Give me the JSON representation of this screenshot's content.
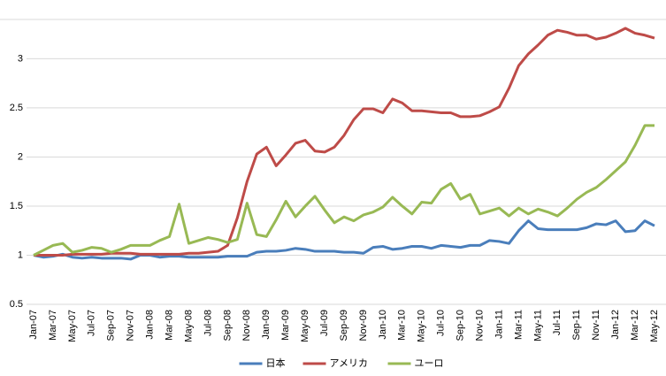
{
  "chart_data": {
    "type": "line",
    "categories": [
      "Jan-07",
      null,
      "Mar-07",
      null,
      "May-07",
      null,
      "Jul-07",
      null,
      "Sep-07",
      null,
      "Nov-07",
      null,
      "Jan-08",
      null,
      "Mar-08",
      null,
      "May-08",
      null,
      "Jul-08",
      null,
      "Sep-08",
      null,
      "Nov-08",
      null,
      "Jan-09",
      null,
      "Mar-09",
      null,
      "May-09",
      null,
      "Jul-09",
      null,
      "Sep-09",
      null,
      "Nov-09",
      null,
      "Jan-10",
      null,
      "Mar-10",
      null,
      "May-10",
      null,
      "Jul-10",
      null,
      "Sep-10",
      null,
      "Nov-10",
      null,
      "Jan-11",
      null,
      "Mar-11",
      null,
      "May-11",
      null,
      "Jul-11",
      null,
      "Sep-11",
      null,
      "Nov-11",
      null,
      "Jan-12",
      null,
      "Mar-12",
      null,
      "May-12"
    ],
    "series": [
      {
        "name": "日本",
        "color": "#4a7ebb",
        "values": [
          1.0,
          0.98,
          0.99,
          1.01,
          0.98,
          0.97,
          0.98,
          0.97,
          0.97,
          0.97,
          0.96,
          1.0,
          1.0,
          0.98,
          0.99,
          0.99,
          0.98,
          0.98,
          0.98,
          0.98,
          0.99,
          0.99,
          0.99,
          1.03,
          1.04,
          1.04,
          1.05,
          1.07,
          1.06,
          1.04,
          1.04,
          1.04,
          1.03,
          1.03,
          1.02,
          1.08,
          1.09,
          1.06,
          1.07,
          1.09,
          1.09,
          1.07,
          1.1,
          1.09,
          1.08,
          1.1,
          1.1,
          1.15,
          1.14,
          1.12,
          1.25,
          1.35,
          1.27,
          1.26,
          1.26,
          1.26,
          1.26,
          1.28,
          1.32,
          1.31,
          1.35,
          1.24,
          1.25,
          1.35,
          1.3
        ]
      },
      {
        "name": "アメリカ",
        "color": "#be4b48",
        "values": [
          1.0,
          1.0,
          1.0,
          1.0,
          1.01,
          1.01,
          1.01,
          1.01,
          1.02,
          1.02,
          1.02,
          1.01,
          1.01,
          1.01,
          1.01,
          1.01,
          1.02,
          1.02,
          1.03,
          1.04,
          1.1,
          1.38,
          1.75,
          2.03,
          2.1,
          1.91,
          2.02,
          2.14,
          2.17,
          2.06,
          2.05,
          2.1,
          2.22,
          2.38,
          2.49,
          2.49,
          2.45,
          2.59,
          2.55,
          2.47,
          2.47,
          2.46,
          2.45,
          2.45,
          2.41,
          2.41,
          2.42,
          2.46,
          2.51,
          2.7,
          2.93,
          3.05,
          3.14,
          3.24,
          3.29,
          3.27,
          3.24,
          3.24,
          3.2,
          3.22,
          3.26,
          3.31,
          3.26,
          3.24,
          3.21
        ]
      },
      {
        "name": "ユーロ",
        "color": "#98b954",
        "values": [
          1.0,
          1.05,
          1.1,
          1.12,
          1.03,
          1.05,
          1.08,
          1.07,
          1.03,
          1.06,
          1.1,
          1.1,
          1.1,
          1.15,
          1.19,
          1.52,
          1.12,
          1.15,
          1.18,
          1.16,
          1.13,
          1.16,
          1.53,
          1.21,
          1.19,
          1.36,
          1.55,
          1.39,
          1.5,
          1.6,
          1.46,
          1.33,
          1.39,
          1.35,
          1.41,
          1.44,
          1.49,
          1.59,
          1.5,
          1.42,
          1.54,
          1.53,
          1.67,
          1.73,
          1.57,
          1.62,
          1.42,
          1.45,
          1.48,
          1.4,
          1.48,
          1.42,
          1.47,
          1.44,
          1.4,
          1.48,
          1.57,
          1.64,
          1.69,
          1.77,
          1.86,
          1.95,
          2.12,
          2.32,
          2.32
        ]
      }
    ],
    "ylim": [
      0.5,
      3.4
    ],
    "yticks": [
      0.5,
      1,
      1.5,
      2,
      2.5,
      3
    ],
    "grid": true,
    "legend": "bottom"
  }
}
